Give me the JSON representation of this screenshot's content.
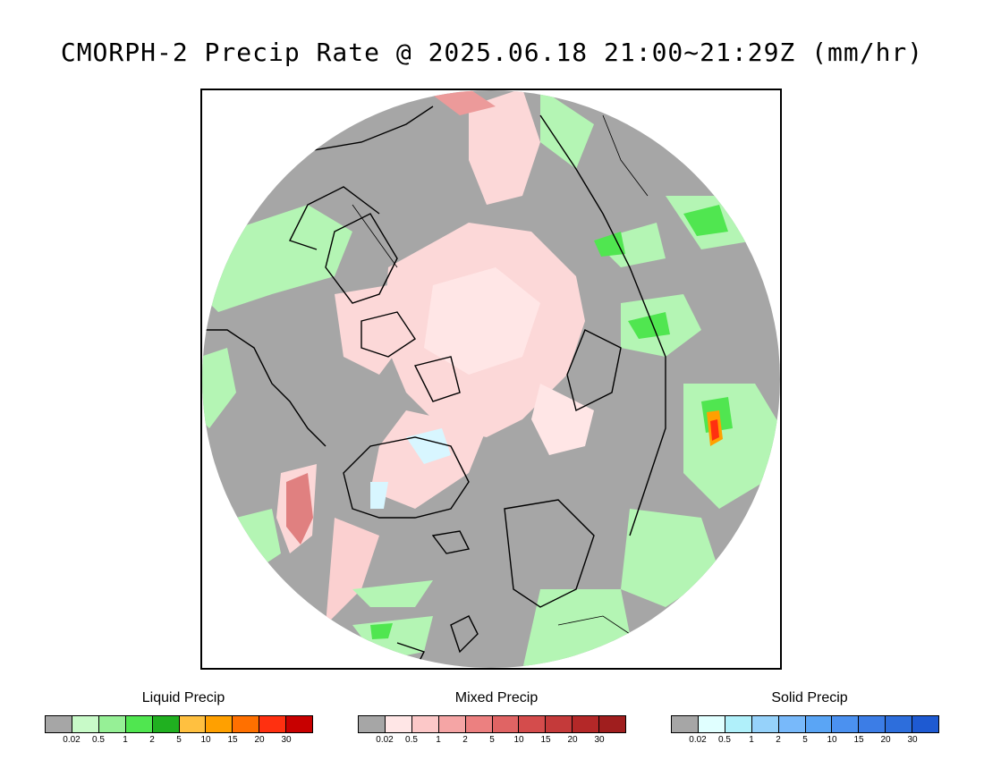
{
  "title": "CMORPH-2 Precip Rate @ 2025.06.18 21:00~21:29Z (mm/hr)",
  "legends": [
    {
      "label": "Liquid Precip",
      "ticks": [
        "0.02",
        "0.5",
        "1",
        "2",
        "5",
        "10",
        "15",
        "20",
        "30"
      ],
      "colors": [
        "#a6a6a6",
        "#c8fac8",
        "#96f096",
        "#50e650",
        "#20b020",
        "#ffc040",
        "#ffa000",
        "#ff7000",
        "#ff3010",
        "#c80000"
      ]
    },
    {
      "label": "Mixed Precip",
      "ticks": [
        "0.02",
        "0.5",
        "1",
        "2",
        "5",
        "10",
        "15",
        "20",
        "30"
      ],
      "colors": [
        "#a6a6a6",
        "#ffe6e6",
        "#fcc8c8",
        "#f5a5a5",
        "#ec8080",
        "#e06464",
        "#d44c4c",
        "#c43a3a",
        "#b42828",
        "#a01e1e"
      ]
    },
    {
      "label": "Solid Precip",
      "ticks": [
        "0.02",
        "0.5",
        "1",
        "2",
        "5",
        "10",
        "15",
        "20",
        "30"
      ],
      "colors": [
        "#a6a6a6",
        "#e0ffff",
        "#b0f0fa",
        "#96d2fa",
        "#78b9fa",
        "#5aa5f5",
        "#4b91f0",
        "#3c7de6",
        "#2d6edc",
        "#1e5ad2"
      ]
    }
  ]
}
